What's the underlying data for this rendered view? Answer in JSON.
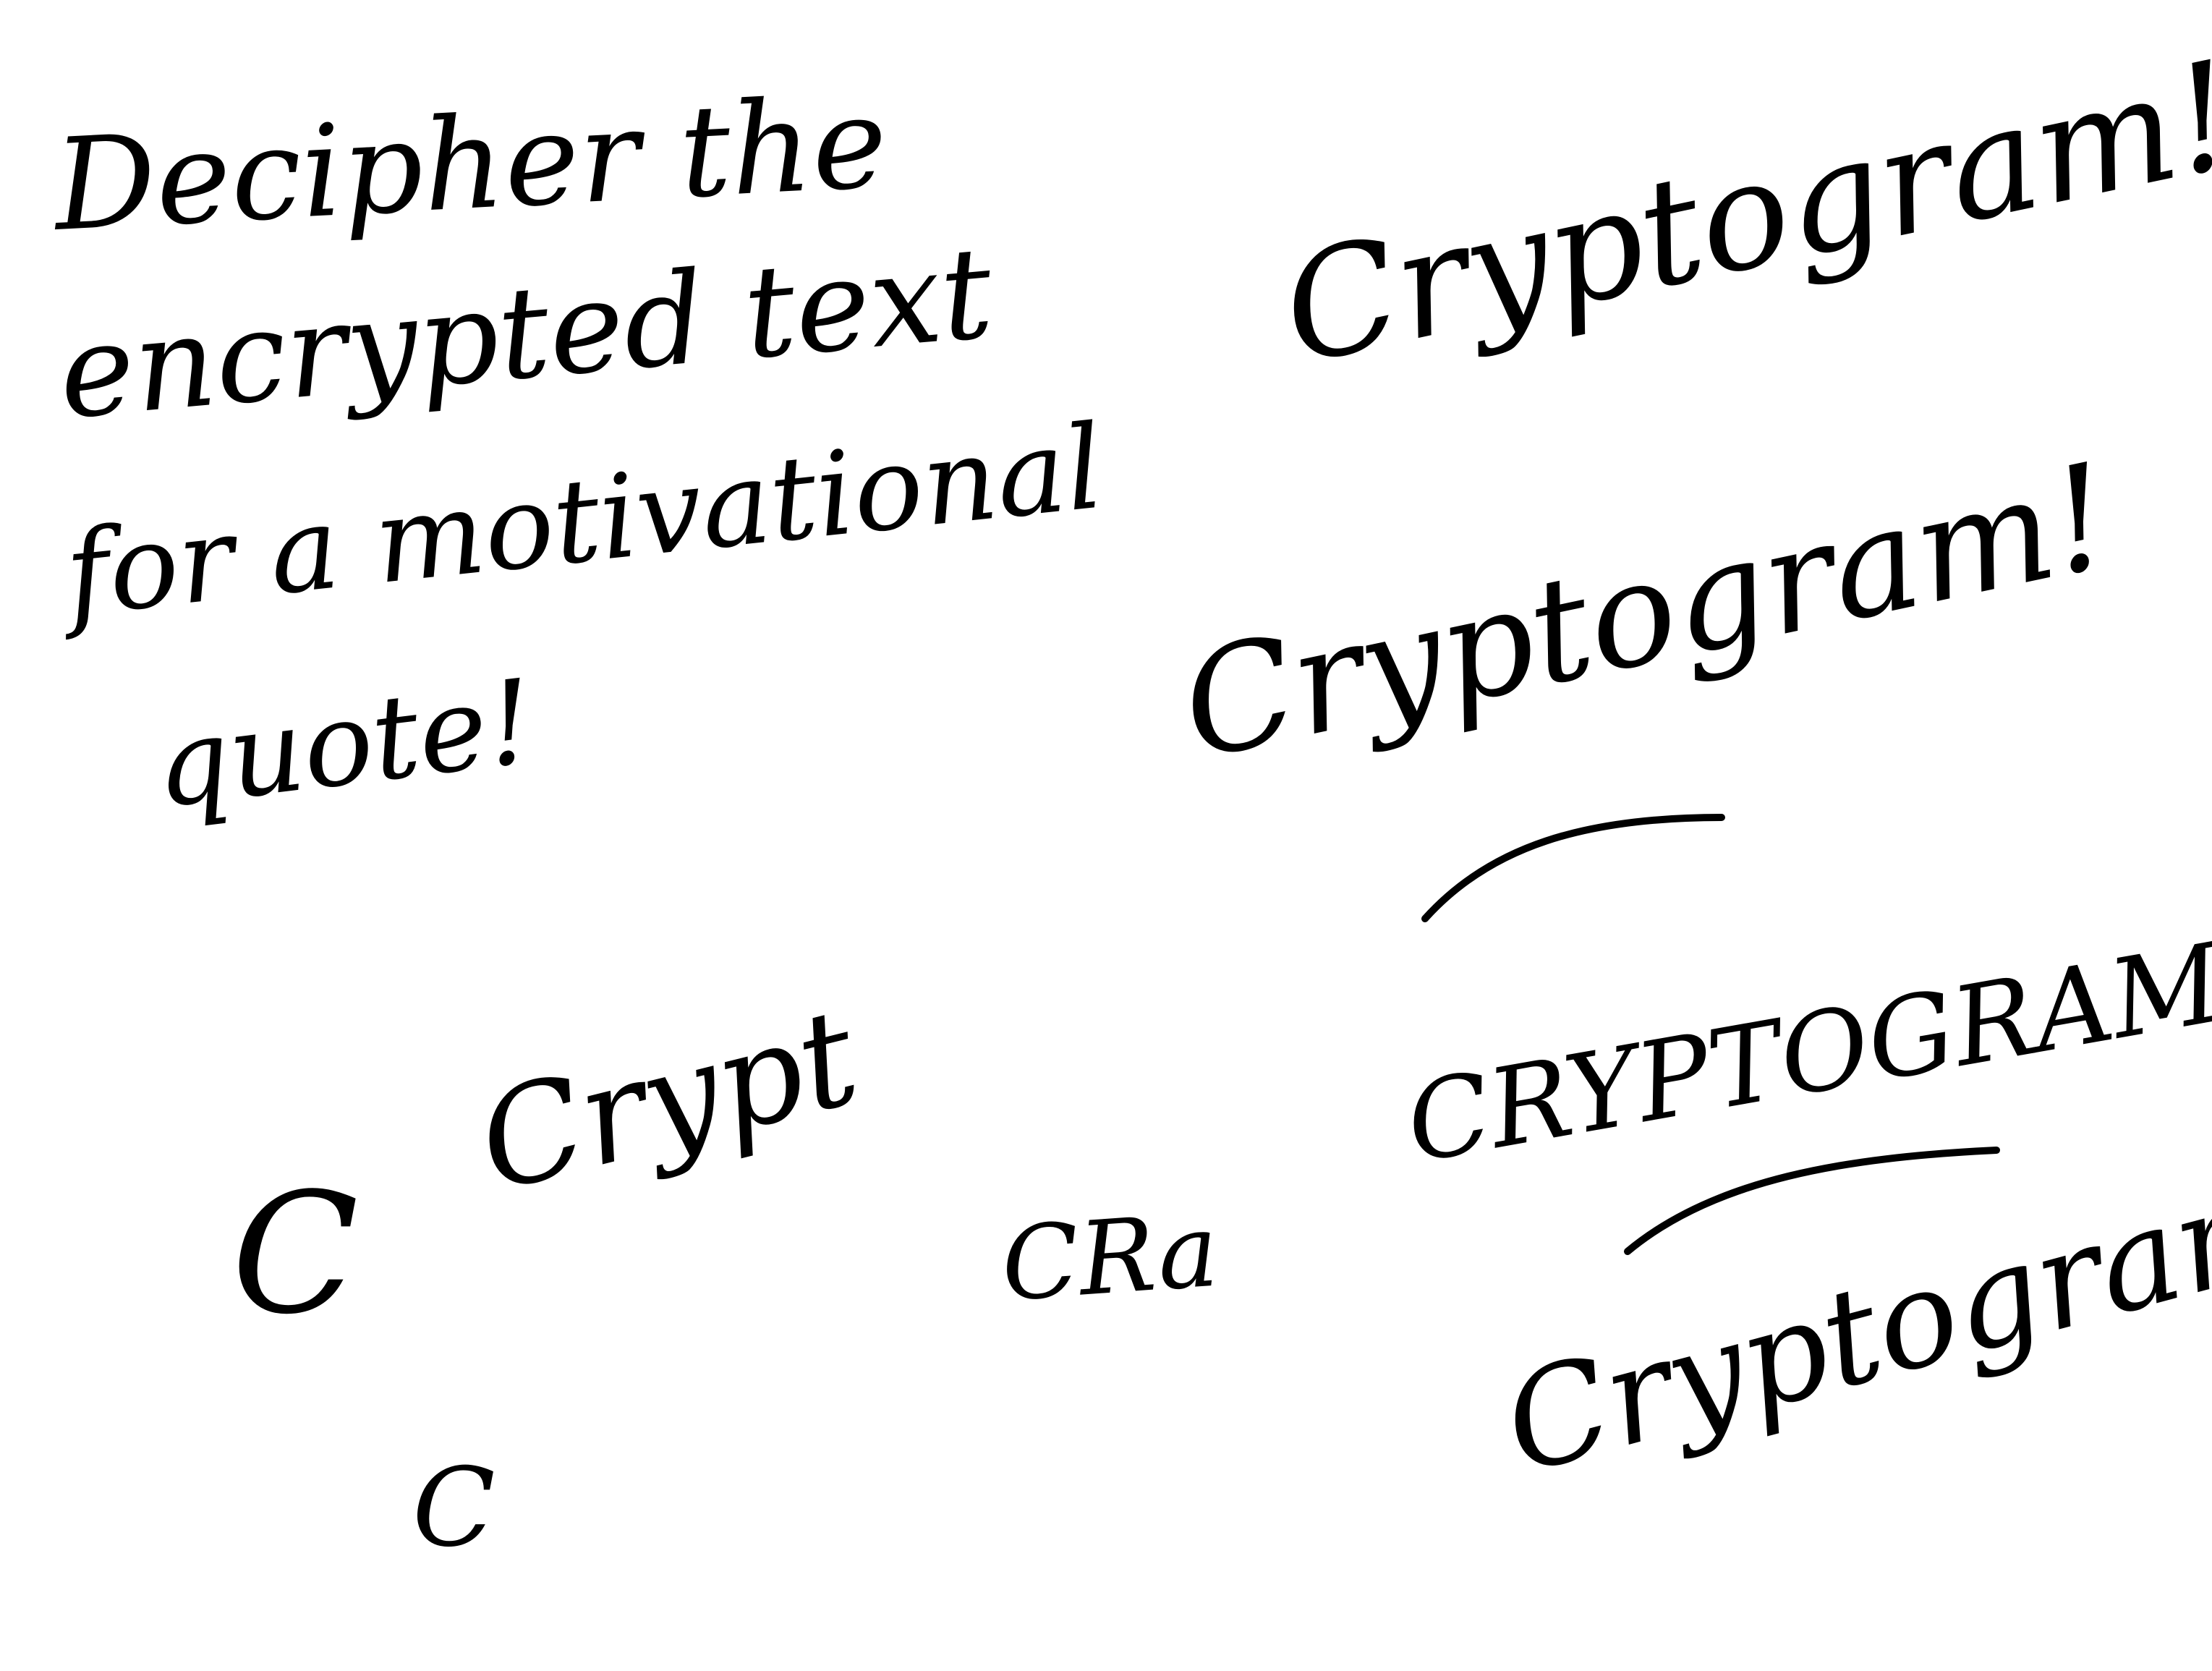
{
  "instruction": {
    "lines": [
      "Decipher the",
      "encrypted text",
      "for a motivational",
      "quote!"
    ]
  },
  "attempts": {
    "top_right_1": "Cryptogram!",
    "top_right_2": "Cryptogram!",
    "crypt": "Crypt",
    "c_alone": "C",
    "cra": "CRa",
    "caps": "CRYPTOGRAM",
    "lower": "Cryptogram",
    "c_small": "C"
  },
  "ink_color": "#000000"
}
